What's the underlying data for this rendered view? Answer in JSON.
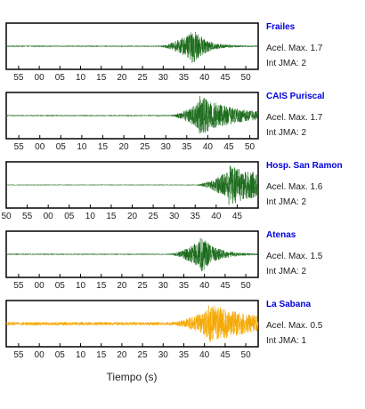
{
  "chart_data": {
    "type": "line",
    "xlabel": "Tiempo (s)",
    "title_color": "#0000dd",
    "panels": [
      {
        "station": "Frailes",
        "acel_label": "Acel. Max. 1.7",
        "int_label": "Int JMA: 2",
        "color": "#1a6b1a",
        "tick_labels": [
          "55",
          "00",
          "05",
          "10",
          "15",
          "20",
          "25",
          "30",
          "35",
          "40",
          "45",
          "50"
        ],
        "tick_start_seconds": 55,
        "x_range_seconds": [
          52,
          113
        ],
        "signal": {
          "onset": 89,
          "peak": 97,
          "peak_amplitude": 1.0,
          "noise": 0.03,
          "decay": 0.35
        }
      },
      {
        "station": "CAIS Puriscal",
        "acel_label": "Acel. Max. 1.7",
        "int_label": "Int JMA: 2",
        "color": "#1a6b1a",
        "tick_labels": [
          "55",
          "00",
          "05",
          "10",
          "15",
          "20",
          "25",
          "30",
          "35",
          "40",
          "45",
          "50"
        ],
        "tick_start_seconds": 55,
        "x_range_seconds": [
          52,
          112
        ],
        "signal": {
          "onset": 91,
          "peak": 98,
          "peak_amplitude": 1.0,
          "noise": 0.03,
          "decay": 0.12
        }
      },
      {
        "station": "Hosp. San Ramon",
        "acel_label": "Acel. Max. 1.6",
        "int_label": "Int JMA: 2",
        "color": "#1a6b1a",
        "tick_labels": [
          "50",
          "55",
          "00",
          "05",
          "10",
          "15",
          "20",
          "25",
          "30",
          "35",
          "40",
          "45"
        ],
        "tick_start_seconds": 50,
        "x_range_seconds": [
          50,
          110
        ],
        "signal": {
          "onset": 95,
          "peak": 103,
          "peak_amplitude": 1.0,
          "noise": 0.02,
          "decay": 0.08
        }
      },
      {
        "station": "Atenas",
        "acel_label": "Acel. Max. 1.5",
        "int_label": "Int JMA: 2",
        "color": "#1a6b1a",
        "tick_labels": [
          "55",
          "00",
          "05",
          "10",
          "15",
          "20",
          "25",
          "30",
          "35",
          "40",
          "45",
          "50"
        ],
        "tick_start_seconds": 55,
        "x_range_seconds": [
          52,
          113
        ],
        "signal": {
          "onset": 91.5,
          "peak": 99,
          "peak_amplitude": 1.0,
          "noise": 0.03,
          "decay": 0.3
        }
      },
      {
        "station": "La Sabana",
        "acel_label": "Acel. Max. 0.5",
        "int_label": "Int JMA: 1",
        "color": "#f5a800",
        "tick_labels": [
          "55",
          "00",
          "05",
          "10",
          "15",
          "20",
          "25",
          "30",
          "35",
          "40",
          "45",
          "50"
        ],
        "tick_start_seconds": 55,
        "x_range_seconds": [
          52,
          113
        ],
        "signal": {
          "onset": 92,
          "peak": 101,
          "peak_amplitude": 1.0,
          "noise": 0.08,
          "decay": 0.09
        }
      }
    ]
  }
}
